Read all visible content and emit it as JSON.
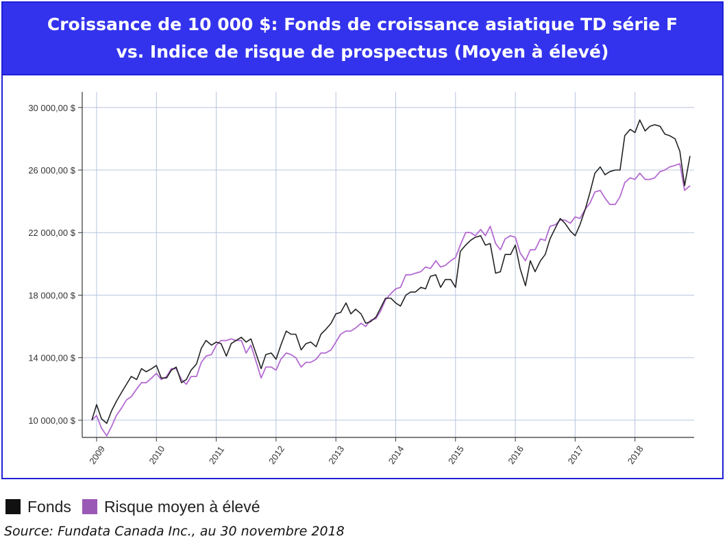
{
  "title_line1": "Croissance de 10 000 $: Fonds de croissance asiatique TD série F",
  "title_line2": "vs. Indice de risque de prospectus (Moyen à élevé)",
  "source": "Source: Fundata Canada Inc., au 30 novembre 2018",
  "colors": {
    "title_bg": "#3333ee",
    "border": "#1f1fd6",
    "fonds": "#222222",
    "risque": "#b36ad1",
    "grid": "#b8c4de"
  },
  "legend": [
    {
      "label": "Fonds",
      "color": "#111111"
    },
    {
      "label": "Risque moyen à élevé",
      "color": "#9b59b6"
    }
  ],
  "chart_data": {
    "type": "line",
    "title": "Croissance de 10 000 $: Fonds de croissance asiatique TD série F vs. Indice de risque de prospectus (Moyen à élevé)",
    "xlabel": "",
    "ylabel": "",
    "xlim": [
      2008.92,
      2018.92
    ],
    "ylim": [
      8900,
      31000
    ],
    "grid": true,
    "legend_position": "bottom-left",
    "y_ticks": [
      10000,
      14000,
      18000,
      22000,
      26000,
      30000
    ],
    "y_tick_labels": [
      "10 000,00 $",
      "14 000,00 $",
      "18 000,00 $",
      "22 000,00 $",
      "26 000,00 $",
      "30 000,00 $"
    ],
    "x_ticks": [
      2009,
      2010,
      2011,
      2012,
      2013,
      2014,
      2015,
      2016,
      2017,
      2018
    ],
    "x_tick_labels": [
      "2009",
      "2010",
      "2011",
      "2012",
      "2013",
      "2014",
      "2015",
      "2016",
      "2017",
      "2018"
    ],
    "series": [
      {
        "name": "Fonds",
        "points": [
          [
            2008.92,
            10000
          ],
          [
            2009.0,
            11000
          ],
          [
            2009.08,
            10100
          ],
          [
            2009.17,
            9800
          ],
          [
            2009.25,
            10600
          ],
          [
            2009.33,
            11200
          ],
          [
            2009.42,
            11800
          ],
          [
            2009.5,
            12300
          ],
          [
            2009.58,
            12800
          ],
          [
            2009.67,
            12600
          ],
          [
            2009.75,
            13300
          ],
          [
            2009.83,
            13100
          ],
          [
            2009.92,
            13300
          ],
          [
            2010.0,
            13500
          ],
          [
            2010.08,
            12700
          ],
          [
            2010.17,
            12700
          ],
          [
            2010.25,
            13200
          ],
          [
            2010.33,
            13400
          ],
          [
            2010.42,
            12400
          ],
          [
            2010.5,
            12600
          ],
          [
            2010.58,
            13200
          ],
          [
            2010.67,
            13600
          ],
          [
            2010.75,
            14600
          ],
          [
            2010.83,
            15100
          ],
          [
            2010.92,
            14800
          ],
          [
            2011.0,
            15000
          ],
          [
            2011.08,
            14900
          ],
          [
            2011.17,
            14100
          ],
          [
            2011.25,
            14900
          ],
          [
            2011.33,
            15100
          ],
          [
            2011.42,
            15300
          ],
          [
            2011.5,
            15000
          ],
          [
            2011.58,
            15200
          ],
          [
            2011.67,
            14200
          ],
          [
            2011.75,
            13300
          ],
          [
            2011.83,
            14200
          ],
          [
            2011.92,
            14300
          ],
          [
            2012.0,
            13900
          ],
          [
            2012.08,
            14800
          ],
          [
            2012.17,
            15700
          ],
          [
            2012.25,
            15500
          ],
          [
            2012.33,
            15500
          ],
          [
            2012.42,
            14500
          ],
          [
            2012.5,
            14900
          ],
          [
            2012.58,
            15000
          ],
          [
            2012.67,
            14700
          ],
          [
            2012.75,
            15500
          ],
          [
            2012.83,
            15800
          ],
          [
            2012.92,
            16200
          ],
          [
            2013.0,
            16800
          ],
          [
            2013.08,
            16900
          ],
          [
            2013.17,
            17500
          ],
          [
            2013.25,
            16800
          ],
          [
            2013.33,
            17100
          ],
          [
            2013.42,
            16800
          ],
          [
            2013.5,
            16200
          ],
          [
            2013.58,
            16300
          ],
          [
            2013.67,
            16600
          ],
          [
            2013.75,
            17200
          ],
          [
            2013.83,
            17800
          ],
          [
            2013.92,
            17800
          ],
          [
            2014.0,
            17500
          ],
          [
            2014.08,
            17300
          ],
          [
            2014.17,
            18000
          ],
          [
            2014.25,
            18200
          ],
          [
            2014.33,
            18200
          ],
          [
            2014.42,
            18500
          ],
          [
            2014.5,
            18400
          ],
          [
            2014.58,
            19200
          ],
          [
            2014.67,
            19300
          ],
          [
            2014.75,
            18500
          ],
          [
            2014.83,
            19000
          ],
          [
            2014.92,
            19000
          ],
          [
            2015.0,
            18500
          ],
          [
            2015.08,
            20800
          ],
          [
            2015.17,
            21200
          ],
          [
            2015.25,
            21500
          ],
          [
            2015.33,
            21700
          ],
          [
            2015.42,
            21800
          ],
          [
            2015.5,
            21200
          ],
          [
            2015.58,
            21300
          ],
          [
            2015.67,
            19400
          ],
          [
            2015.75,
            19500
          ],
          [
            2015.83,
            20600
          ],
          [
            2015.92,
            20600
          ],
          [
            2016.0,
            21200
          ],
          [
            2016.08,
            19700
          ],
          [
            2016.17,
            18600
          ],
          [
            2016.25,
            20200
          ],
          [
            2016.33,
            19500
          ],
          [
            2016.42,
            20200
          ],
          [
            2016.5,
            20600
          ],
          [
            2016.58,
            21600
          ],
          [
            2016.67,
            22300
          ],
          [
            2016.75,
            22900
          ],
          [
            2016.83,
            22600
          ],
          [
            2016.92,
            22100
          ],
          [
            2017.0,
            21800
          ],
          [
            2017.08,
            22500
          ],
          [
            2017.17,
            23500
          ],
          [
            2017.25,
            24600
          ],
          [
            2017.33,
            25800
          ],
          [
            2017.42,
            26200
          ],
          [
            2017.5,
            25700
          ],
          [
            2017.58,
            25900
          ],
          [
            2017.67,
            26000
          ],
          [
            2017.75,
            26000
          ],
          [
            2017.83,
            28200
          ],
          [
            2017.92,
            28600
          ],
          [
            2018.0,
            28400
          ],
          [
            2018.08,
            29200
          ],
          [
            2018.17,
            28500
          ],
          [
            2018.25,
            28800
          ],
          [
            2018.33,
            28900
          ],
          [
            2018.42,
            28800
          ],
          [
            2018.5,
            28300
          ],
          [
            2018.58,
            28200
          ],
          [
            2018.67,
            28000
          ],
          [
            2018.75,
            27200
          ],
          [
            2018.83,
            25000
          ],
          [
            2018.92,
            26900
          ]
        ]
      },
      {
        "name": "Risque moyen à élevé",
        "points": [
          [
            2008.92,
            10000
          ],
          [
            2009.0,
            10300
          ],
          [
            2009.08,
            9500
          ],
          [
            2009.17,
            9000
          ],
          [
            2009.25,
            9600
          ],
          [
            2009.33,
            10300
          ],
          [
            2009.42,
            10800
          ],
          [
            2009.5,
            11300
          ],
          [
            2009.58,
            11500
          ],
          [
            2009.67,
            12000
          ],
          [
            2009.75,
            12400
          ],
          [
            2009.83,
            12400
          ],
          [
            2009.92,
            12700
          ],
          [
            2010.0,
            13000
          ],
          [
            2010.08,
            12600
          ],
          [
            2010.17,
            12800
          ],
          [
            2010.25,
            13300
          ],
          [
            2010.33,
            13300
          ],
          [
            2010.42,
            12600
          ],
          [
            2010.5,
            12300
          ],
          [
            2010.58,
            12800
          ],
          [
            2010.67,
            12800
          ],
          [
            2010.75,
            13700
          ],
          [
            2010.83,
            14100
          ],
          [
            2010.92,
            14200
          ],
          [
            2011.0,
            14800
          ],
          [
            2011.08,
            15100
          ],
          [
            2011.17,
            15100
          ],
          [
            2011.25,
            15200
          ],
          [
            2011.33,
            15100
          ],
          [
            2011.42,
            15100
          ],
          [
            2011.5,
            14300
          ],
          [
            2011.58,
            14800
          ],
          [
            2011.67,
            13700
          ],
          [
            2011.75,
            12700
          ],
          [
            2011.83,
            13400
          ],
          [
            2011.92,
            13400
          ],
          [
            2012.0,
            13200
          ],
          [
            2012.08,
            13900
          ],
          [
            2012.17,
            14300
          ],
          [
            2012.25,
            14200
          ],
          [
            2012.33,
            14000
          ],
          [
            2012.42,
            13400
          ],
          [
            2012.5,
            13700
          ],
          [
            2012.58,
            13700
          ],
          [
            2012.67,
            13900
          ],
          [
            2012.75,
            14300
          ],
          [
            2012.83,
            14300
          ],
          [
            2012.92,
            14500
          ],
          [
            2013.0,
            15000
          ],
          [
            2013.08,
            15500
          ],
          [
            2013.17,
            15700
          ],
          [
            2013.25,
            15700
          ],
          [
            2013.33,
            15900
          ],
          [
            2013.42,
            16200
          ],
          [
            2013.5,
            16000
          ],
          [
            2013.58,
            16400
          ],
          [
            2013.67,
            16500
          ],
          [
            2013.75,
            17000
          ],
          [
            2013.83,
            17700
          ],
          [
            2013.92,
            18100
          ],
          [
            2014.0,
            18400
          ],
          [
            2014.08,
            18500
          ],
          [
            2014.17,
            19300
          ],
          [
            2014.25,
            19300
          ],
          [
            2014.33,
            19400
          ],
          [
            2014.42,
            19500
          ],
          [
            2014.5,
            19800
          ],
          [
            2014.58,
            19700
          ],
          [
            2014.67,
            20200
          ],
          [
            2014.75,
            19800
          ],
          [
            2014.83,
            19900
          ],
          [
            2014.92,
            20200
          ],
          [
            2015.0,
            20400
          ],
          [
            2015.08,
            21200
          ],
          [
            2015.17,
            22000
          ],
          [
            2015.25,
            22000
          ],
          [
            2015.33,
            21800
          ],
          [
            2015.42,
            22200
          ],
          [
            2015.5,
            21800
          ],
          [
            2015.58,
            22400
          ],
          [
            2015.67,
            21300
          ],
          [
            2015.75,
            20900
          ],
          [
            2015.83,
            21600
          ],
          [
            2015.92,
            21800
          ],
          [
            2016.0,
            21700
          ],
          [
            2016.08,
            20700
          ],
          [
            2016.17,
            20200
          ],
          [
            2016.25,
            20900
          ],
          [
            2016.33,
            20900
          ],
          [
            2016.42,
            21600
          ],
          [
            2016.5,
            21500
          ],
          [
            2016.58,
            22400
          ],
          [
            2016.67,
            22500
          ],
          [
            2016.75,
            22800
          ],
          [
            2016.83,
            22800
          ],
          [
            2016.92,
            22600
          ],
          [
            2017.0,
            23000
          ],
          [
            2017.08,
            22900
          ],
          [
            2017.17,
            23500
          ],
          [
            2017.25,
            23900
          ],
          [
            2017.33,
            24600
          ],
          [
            2017.42,
            24700
          ],
          [
            2017.5,
            24200
          ],
          [
            2017.58,
            23800
          ],
          [
            2017.67,
            23800
          ],
          [
            2017.75,
            24300
          ],
          [
            2017.83,
            25200
          ],
          [
            2017.92,
            25500
          ],
          [
            2018.0,
            25400
          ],
          [
            2018.08,
            25800
          ],
          [
            2018.17,
            25400
          ],
          [
            2018.25,
            25400
          ],
          [
            2018.33,
            25500
          ],
          [
            2018.42,
            25900
          ],
          [
            2018.5,
            26000
          ],
          [
            2018.58,
            26200
          ],
          [
            2018.67,
            26300
          ],
          [
            2018.75,
            26400
          ],
          [
            2018.83,
            24700
          ],
          [
            2018.92,
            25000
          ]
        ]
      }
    ]
  }
}
